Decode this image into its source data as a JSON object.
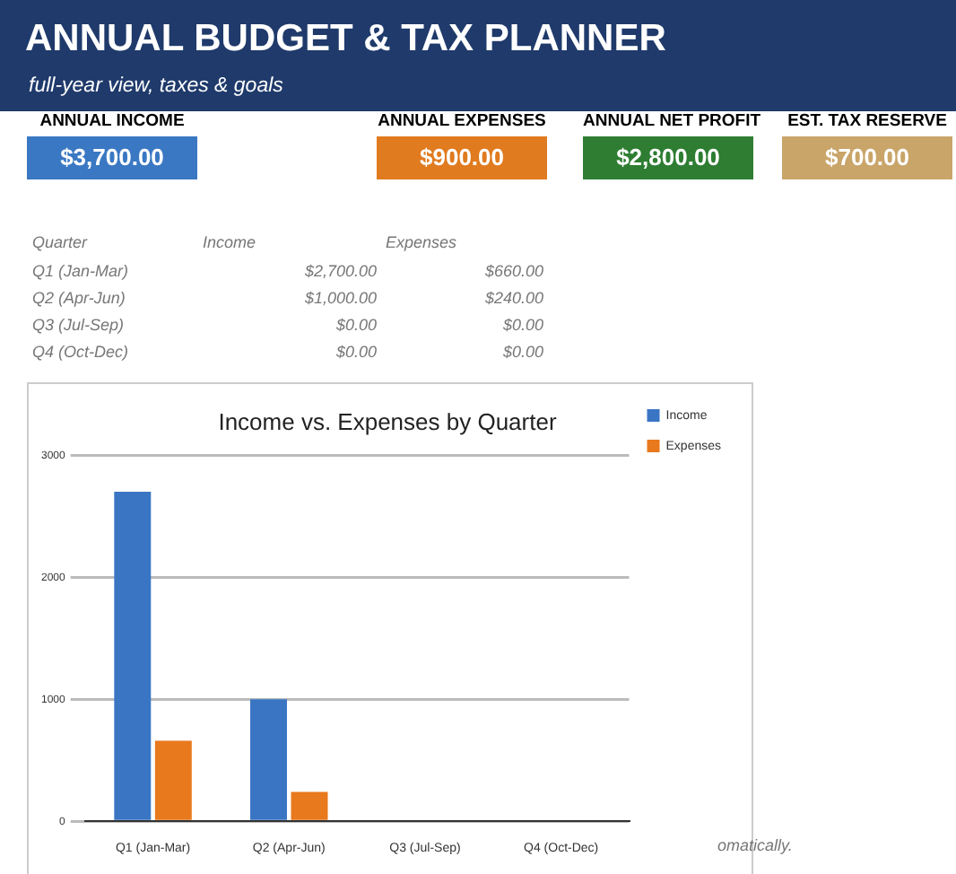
{
  "chart_data": [
    {
      "type": "other",
      "title": "ANNUAL BUDGET & TAX PLANNER",
      "subtitle": "full-year view, taxes & goals",
      "categories": [
        "ANNUAL INCOME",
        "ANNUAL EXPENSES",
        "ANNUAL NET PROFIT",
        "EST. TAX RESERVE"
      ],
      "value_labels": [
        "$3,700.00",
        "$900.00",
        "$2,800.00",
        "$700.00"
      ],
      "colors": [
        "#3a78c3",
        "#e07b1f",
        "#2e7d32",
        "#c9a56a"
      ]
    },
    {
      "type": "other",
      "annotations": [
        "Quarter",
        "Income",
        "Expenses",
        "Q1 (Jan-Mar)",
        "$2,700.00",
        "$660.00",
        "Q2 (Apr-Jun)",
        "$1,000.00",
        "$240.00",
        "Q3 (Jul-Sep)",
        "$0.00",
        "$0.00",
        "Q4 (Oct-Dec)",
        "$0.00",
        "$0.00"
      ]
    },
    {
      "type": "bar",
      "title": "Income vs. Expenses by Quarter",
      "categories": [
        "Q1 (Jan-Mar)",
        "Q2 (Apr-Jun)",
        "Q3 (Jul-Sep)",
        "Q4 (Oct-Dec)"
      ],
      "series": [
        {
          "name": "Income",
          "color": "#3a75c4",
          "values": [
            2700,
            1000,
            0,
            0
          ]
        },
        {
          "name": "Expenses",
          "color": "#e8791d",
          "values": [
            660,
            240,
            0,
            0
          ]
        }
      ],
      "ylim": [
        0,
        3000
      ],
      "yticks": [
        0,
        1000,
        2000,
        3000
      ],
      "grid": "y",
      "legend": "top right",
      "annotations": [
        "omatically."
      ]
    }
  ]
}
